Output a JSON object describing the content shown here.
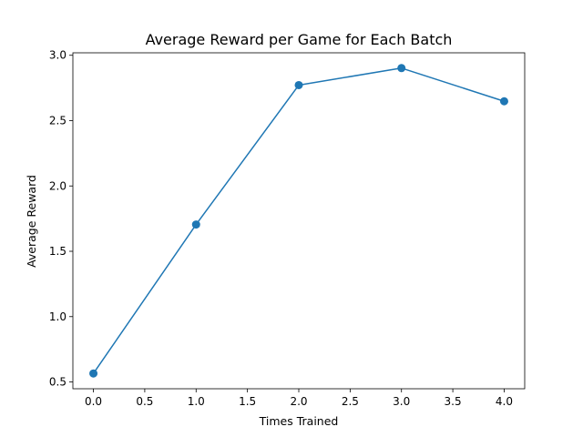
{
  "chart_data": {
    "type": "line",
    "title": "Average Reward per Game for Each Batch",
    "xlabel": "Times Trained",
    "ylabel": "Average Reward",
    "x": [
      0,
      1,
      2,
      3,
      4
    ],
    "series": [
      {
        "values": [
          0.565,
          1.705,
          2.772,
          2.902,
          2.648
        ],
        "color": "#1f77b4",
        "marker": "circle"
      }
    ],
    "xlim": [
      -0.2,
      4.2
    ],
    "ylim": [
      0.448,
      3.019
    ],
    "xticks": [
      "0.0",
      "0.5",
      "1.0",
      "1.5",
      "2.0",
      "2.5",
      "3.0",
      "3.5",
      "4.0"
    ],
    "yticks": [
      "0.5",
      "1.0",
      "1.5",
      "2.0",
      "2.5",
      "3.0"
    ],
    "grid": false,
    "legend": "none"
  }
}
